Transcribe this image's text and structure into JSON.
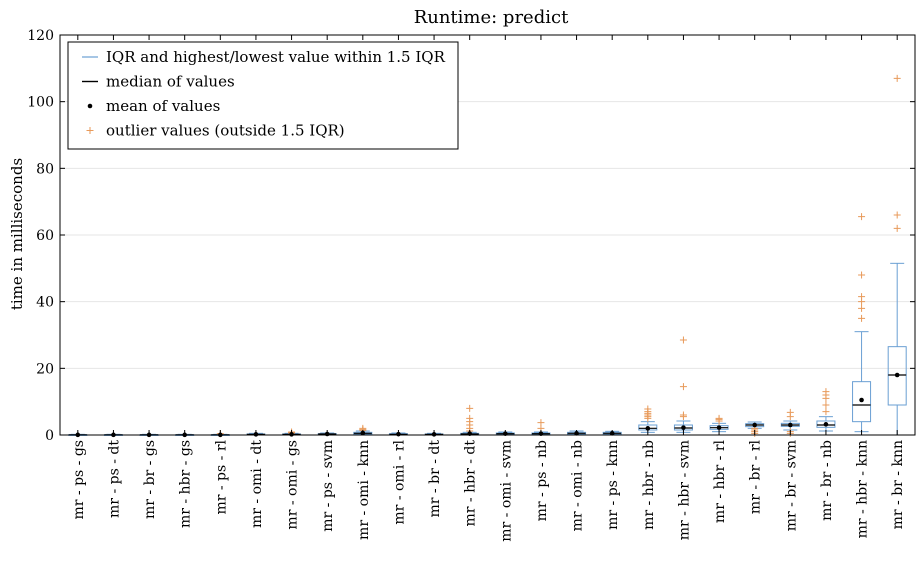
{
  "chart_data": {
    "type": "box",
    "title": "Runtime: predict",
    "xlabel": "",
    "ylabel": "time in milliseconds",
    "ylim": [
      0,
      120
    ],
    "yticks": [
      0,
      20,
      40,
      60,
      80,
      100,
      120
    ],
    "grid": "horizontal",
    "legend_position": "top-left",
    "colors": {
      "box": "#6a9fd3",
      "median": "#000000",
      "mean": "#000000",
      "outlier": "#e89a5a",
      "grid": "#e6e6e6"
    },
    "legend": [
      {
        "label": "IQR and highest/lowest value within 1.5 IQR",
        "kind": "box"
      },
      {
        "label": "median of values",
        "kind": "median"
      },
      {
        "label": "mean of values",
        "kind": "mean"
      },
      {
        "label": "outlier values (outside 1.5 IQR)",
        "kind": "outlier"
      }
    ],
    "categories": [
      "mr - ps - gs",
      "mr - ps - dt",
      "mr - br - gs",
      "mr - hbr - gs",
      "mr - ps - rl",
      "mr - omi - dt",
      "mr - omi - gs",
      "mr - ps - svm",
      "mr - omi - knn",
      "mr - omi - rl",
      "mr - br - dt",
      "mr - hbr - dt",
      "mr - omi - svm",
      "mr - ps - nb",
      "mr - omi - nb",
      "mr - ps - knn",
      "mr - hbr - nb",
      "mr - hbr - svm",
      "mr - hbr - rl",
      "mr - br - rl",
      "mr - br - svm",
      "mr - br - nb",
      "mr - hbr - knn",
      "mr - br - knn"
    ],
    "series": [
      {
        "min": 0,
        "q1": 0,
        "median": 0.05,
        "q3": 0.1,
        "max": 0.2,
        "mean": 0.05,
        "outliers": []
      },
      {
        "min": 0,
        "q1": 0,
        "median": 0.05,
        "q3": 0.1,
        "max": 0.2,
        "mean": 0.05,
        "outliers": []
      },
      {
        "min": 0,
        "q1": 0,
        "median": 0.05,
        "q3": 0.1,
        "max": 0.2,
        "mean": 0.05,
        "outliers": []
      },
      {
        "min": 0,
        "q1": 0,
        "median": 0.05,
        "q3": 0.1,
        "max": 0.2,
        "mean": 0.05,
        "outliers": []
      },
      {
        "min": 0,
        "q1": 0,
        "median": 0.05,
        "q3": 0.1,
        "max": 0.2,
        "mean": 0.05,
        "outliers": [
          0.4
        ]
      },
      {
        "min": 0,
        "q1": 0.1,
        "median": 0.2,
        "q3": 0.3,
        "max": 0.5,
        "mean": 0.2,
        "outliers": []
      },
      {
        "min": 0,
        "q1": 0.1,
        "median": 0.2,
        "q3": 0.3,
        "max": 0.5,
        "mean": 0.2,
        "outliers": [
          0.9,
          0.6
        ]
      },
      {
        "min": 0,
        "q1": 0.1,
        "median": 0.3,
        "q3": 0.4,
        "max": 0.6,
        "mean": 0.3,
        "outliers": []
      },
      {
        "min": 0,
        "q1": 0.3,
        "median": 0.5,
        "q3": 0.8,
        "max": 1.2,
        "mean": 0.6,
        "outliers": [
          1.6,
          2.0,
          1.4
        ]
      },
      {
        "min": 0,
        "q1": 0.1,
        "median": 0.2,
        "q3": 0.4,
        "max": 0.6,
        "mean": 0.25,
        "outliers": []
      },
      {
        "min": 0,
        "q1": 0.1,
        "median": 0.2,
        "q3": 0.3,
        "max": 0.5,
        "mean": 0.2,
        "outliers": []
      },
      {
        "min": 0,
        "q1": 0.1,
        "median": 0.3,
        "q3": 0.5,
        "max": 0.8,
        "mean": 0.4,
        "outliers": [
          1.2,
          2.0,
          3.0,
          4.0,
          5.0,
          8.0
        ]
      },
      {
        "min": 0,
        "q1": 0.2,
        "median": 0.4,
        "q3": 0.6,
        "max": 0.9,
        "mean": 0.4,
        "outliers": []
      },
      {
        "min": 0,
        "q1": 0.2,
        "median": 0.4,
        "q3": 0.6,
        "max": 0.9,
        "mean": 0.4,
        "outliers": [
          2.0,
          3.7
        ]
      },
      {
        "min": 0,
        "q1": 0.2,
        "median": 0.5,
        "q3": 0.8,
        "max": 1.2,
        "mean": 0.5,
        "outliers": []
      },
      {
        "min": 0,
        "q1": 0.2,
        "median": 0.5,
        "q3": 0.8,
        "max": 1.1,
        "mean": 0.5,
        "outliers": []
      },
      {
        "min": 0.8,
        "q1": 1.5,
        "median": 2.0,
        "q3": 3.0,
        "max": 4.0,
        "mean": 2.0,
        "outliers": [
          5.0,
          5.5,
          6.0,
          6.5,
          7.0,
          7.8
        ]
      },
      {
        "min": 0.8,
        "q1": 1.5,
        "median": 2.1,
        "q3": 3.0,
        "max": 4.2,
        "mean": 2.2,
        "outliers": [
          5.5,
          6.0,
          14.5,
          28.5
        ]
      },
      {
        "min": 1.0,
        "q1": 1.7,
        "median": 2.2,
        "q3": 2.8,
        "max": 3.5,
        "mean": 2.2,
        "outliers": [
          4.2,
          4.7,
          5.0
        ]
      },
      {
        "min": 2.0,
        "q1": 2.5,
        "median": 3.0,
        "q3": 3.4,
        "max": 3.9,
        "mean": 3.0,
        "outliers": [
          0.5,
          1.0,
          1.5,
          2.0
        ]
      },
      {
        "min": 1.5,
        "q1": 2.6,
        "median": 3.0,
        "q3": 3.5,
        "max": 4.2,
        "mean": 3.0,
        "outliers": [
          0.5,
          1.0,
          5.5,
          6.8
        ]
      },
      {
        "min": 1.2,
        "q1": 2.3,
        "median": 3.0,
        "q3": 4.2,
        "max": 5.5,
        "mean": 3.2,
        "outliers": [
          7.0,
          9.0,
          11.0,
          12.0,
          13.0
        ]
      },
      {
        "min": 1.0,
        "q1": 4.0,
        "median": 9.0,
        "q3": 16.0,
        "max": 31.0,
        "mean": 10.5,
        "outliers": [
          35.0,
          38.0,
          40.0,
          41.5,
          48.0,
          65.5
        ]
      },
      {
        "min": 0,
        "q1": 9.0,
        "median": 18.0,
        "q3": 26.5,
        "max": 51.5,
        "mean": 18.0,
        "outliers": [
          62.0,
          66.0,
          107.0
        ]
      }
    ]
  }
}
